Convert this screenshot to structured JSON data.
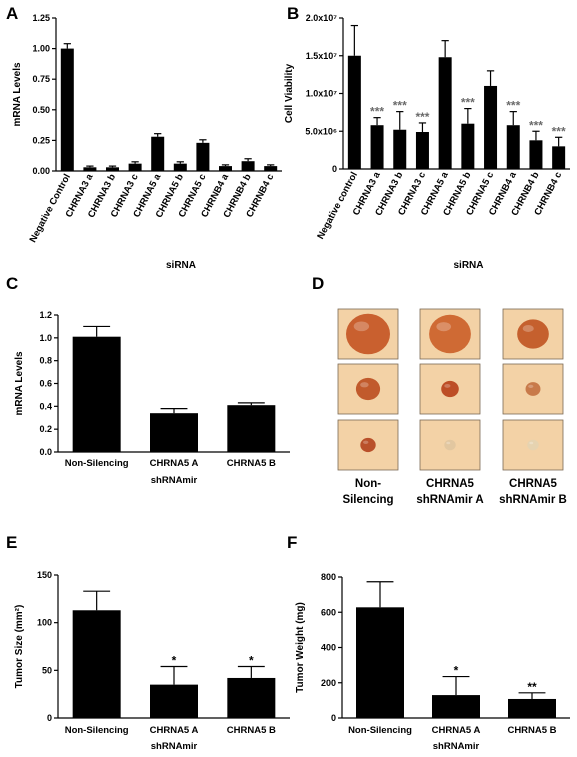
{
  "panels": {
    "A": "A",
    "B": "B",
    "C": "C",
    "D": "D",
    "E": "E",
    "F": "F"
  },
  "chart_data": [
    {
      "id": "A",
      "type": "bar",
      "ylabel": "mRNA Levels",
      "xlabel": "siRNA",
      "ylim": [
        0,
        1.25
      ],
      "yticks": [
        "0.00",
        "0.25",
        "0.50",
        "0.75",
        "1.00",
        "1.25"
      ],
      "categories": [
        "Negative Control",
        "CHRNA3 a",
        "CHRNA3 b",
        "CHRNA3 c",
        "CHRNA5 a",
        "CHRNA5 b",
        "CHRNA5 c",
        "CHRNB4 a",
        "CHRNB4 b",
        "CHRNB4 c"
      ],
      "values": [
        1.0,
        0.03,
        0.03,
        0.06,
        0.28,
        0.06,
        0.23,
        0.04,
        0.08,
        0.04
      ],
      "errors": [
        0.04,
        0.01,
        0.01,
        0.015,
        0.025,
        0.015,
        0.025,
        0.01,
        0.02,
        0.01
      ],
      "significance": [
        "",
        "",
        "",
        "",
        "",
        "",
        "",
        "",
        "",
        ""
      ]
    },
    {
      "id": "B",
      "type": "bar",
      "ylabel": "Cell Viability",
      "xlabel": "siRNA",
      "ylim": [
        0,
        20000000
      ],
      "yticks": [
        "0",
        "5.0x10⁶",
        "1.0x10⁷",
        "1.5x10⁷",
        "2.0x10⁷"
      ],
      "categories": [
        "Negative control",
        "CHRNA3 a",
        "CHRNA3 b",
        "CHRNA3 c",
        "CHRNA5 a",
        "CHRNA5 b",
        "CHRNA5 c",
        "CHRNB4 a",
        "CHRNB4 b",
        "CHRNB4 c"
      ],
      "values": [
        15000000,
        5800000,
        5200000,
        4900000,
        14800000,
        6000000,
        11000000,
        5800000,
        3800000,
        3000000
      ],
      "errors": [
        4000000,
        1000000,
        2400000,
        1200000,
        2200000,
        2000000,
        2000000,
        1800000,
        1200000,
        1200000
      ],
      "significance": [
        "",
        "***",
        "***",
        "***",
        "",
        "***",
        "",
        "***",
        "***",
        "***"
      ]
    },
    {
      "id": "C",
      "type": "bar",
      "ylabel": "mRNA Levels",
      "xlabel": "shRNAmir",
      "ylim": [
        0,
        1.2
      ],
      "yticks": [
        "0.0",
        "0.2",
        "0.4",
        "0.6",
        "0.8",
        "1.0",
        "1.2"
      ],
      "categories": [
        "Non-Silencing",
        "CHRNA5 A",
        "CHRNA5 B"
      ],
      "values": [
        1.01,
        0.34,
        0.41
      ],
      "errors": [
        0.09,
        0.04,
        0.02
      ],
      "significance": [
        "",
        "",
        ""
      ]
    },
    {
      "id": "E",
      "type": "bar",
      "ylabel": "Tumor Size (mm²)",
      "xlabel": "shRNAmir",
      "ylim": [
        0,
        150
      ],
      "yticks": [
        "0",
        "50",
        "100",
        "150"
      ],
      "categories": [
        "Non-Silencing",
        "CHRNA5 A",
        "CHRNA5 B"
      ],
      "values": [
        113,
        35,
        42
      ],
      "errors": [
        20,
        19,
        12
      ],
      "significance": [
        "",
        "*",
        "*"
      ]
    },
    {
      "id": "F",
      "type": "bar",
      "ylabel": "Tumor Weight (mg)",
      "xlabel": "shRNAmir",
      "ylim": [
        0,
        800
      ],
      "yticks": [
        "0",
        "200",
        "400",
        "600",
        "800"
      ],
      "categories": [
        "Non-Silencing",
        "CHRNA5 A",
        "CHRNA5 B"
      ],
      "values": [
        628,
        130,
        108
      ],
      "errors": [
        145,
        105,
        35
      ],
      "significance": [
        "",
        "*",
        "**"
      ]
    }
  ],
  "panel_d": {
    "columns": [
      "Non-Silencing",
      "CHRNA5 shRNAmir A",
      "CHRNA5 shRNAmir B"
    ],
    "column_label_lines": [
      [
        "Non-",
        "Silencing"
      ],
      [
        "CHRNA5",
        "shRNAmir A"
      ],
      [
        "CHRNA5",
        "shRNAmir B"
      ]
    ],
    "tumors": [
      [
        {
          "size": 1.0,
          "color": "#c9602f"
        },
        {
          "size": 0.95,
          "color": "#cf6a34"
        },
        {
          "size": 0.72,
          "color": "#c5602e"
        }
      ],
      [
        {
          "size": 0.55,
          "color": "#c15a2c"
        },
        {
          "size": 0.4,
          "color": "#bd4e26"
        },
        {
          "size": 0.34,
          "color": "#c87a4a"
        }
      ],
      [
        {
          "size": 0.35,
          "color": "#b9502a"
        },
        {
          "size": 0.26,
          "color": "#e2c7a0"
        },
        {
          "size": 0.26,
          "color": "#e6d3b0"
        }
      ]
    ],
    "tile_color": "#f3d2a6"
  }
}
